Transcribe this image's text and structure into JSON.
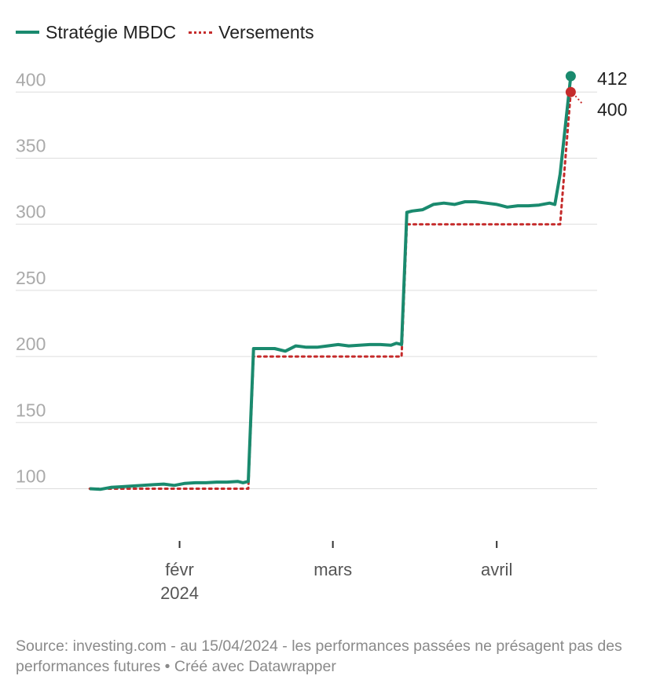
{
  "legend": {
    "series_1": "Stratégie MBDC",
    "series_2": "Versements"
  },
  "footer": {
    "source": "Source: investing.com - au 15/04/2024 - les performances passées ne présagent pas des performances futures • Créé avec Datawrapper"
  },
  "colors": {
    "strategy": "#1a8a6e",
    "deposits": "#c52b2b",
    "grid": "#dddddd",
    "axis_text": "#aaaaaa"
  },
  "chart_data": {
    "type": "line",
    "title": "",
    "xlabel": "",
    "ylabel": "",
    "ylim": [
      70,
      415
    ],
    "xlim": [
      "2024-01-01",
      "2024-04-20"
    ],
    "y_ticks": [
      {
        "value": 100,
        "label": "100"
      },
      {
        "value": 150,
        "label": "150"
      },
      {
        "value": 200,
        "label": "200"
      },
      {
        "value": 250,
        "label": "250"
      },
      {
        "value": 300,
        "label": "300"
      },
      {
        "value": 350,
        "label": "350"
      },
      {
        "value": 400,
        "label": "400"
      }
    ],
    "x_ticks": [
      {
        "date": "2024-02-01",
        "label": "févr",
        "sublabel": "2024"
      },
      {
        "date": "2024-03-01",
        "label": "mars",
        "sublabel": ""
      },
      {
        "date": "2024-04-01",
        "label": "avril",
        "sublabel": ""
      }
    ],
    "grid": true,
    "legend_position": "top-left",
    "series": [
      {
        "name": "Stratégie MBDC",
        "style": "solid",
        "x": [
          "2024-01-15",
          "2024-01-17",
          "2024-01-19",
          "2024-01-21",
          "2024-01-23",
          "2024-01-25",
          "2024-01-27",
          "2024-01-29",
          "2024-01-31",
          "2024-02-02",
          "2024-02-04",
          "2024-02-06",
          "2024-02-08",
          "2024-02-10",
          "2024-02-12",
          "2024-02-13",
          "2024-02-14",
          "2024-02-15",
          "2024-02-17",
          "2024-02-19",
          "2024-02-21",
          "2024-02-23",
          "2024-02-25",
          "2024-02-27",
          "2024-02-29",
          "2024-03-02",
          "2024-03-04",
          "2024-03-06",
          "2024-03-08",
          "2024-03-10",
          "2024-03-12",
          "2024-03-13",
          "2024-03-14",
          "2024-03-15",
          "2024-03-16",
          "2024-03-18",
          "2024-03-20",
          "2024-03-22",
          "2024-03-24",
          "2024-03-26",
          "2024-03-28",
          "2024-03-30",
          "2024-04-01",
          "2024-04-03",
          "2024-04-05",
          "2024-04-07",
          "2024-04-09",
          "2024-04-11",
          "2024-04-12",
          "2024-04-13",
          "2024-04-15"
        ],
        "values": [
          100,
          99.5,
          101,
          101.5,
          102,
          102.5,
          103,
          103.5,
          102.5,
          104,
          104.5,
          104.5,
          105,
          105,
          105.5,
          104.5,
          105.5,
          206,
          206,
          206,
          204,
          208,
          207,
          207,
          208,
          209,
          208,
          208.5,
          209,
          209,
          208.5,
          210,
          209,
          309,
          310,
          311,
          315,
          316,
          315,
          317,
          317,
          316,
          315,
          313,
          314,
          314,
          314.5,
          316,
          315,
          338,
          412
        ]
      },
      {
        "name": "Versements",
        "style": "dotted",
        "x": [
          "2024-01-15",
          "2024-02-14",
          "2024-02-15",
          "2024-03-14",
          "2024-03-15",
          "2024-04-13",
          "2024-04-15"
        ],
        "values": [
          100,
          100,
          200,
          200,
          300,
          300,
          400
        ]
      }
    ],
    "end_labels": [
      {
        "series": "Stratégie MBDC",
        "value": 412,
        "label": "412"
      },
      {
        "series": "Versements",
        "value": 400,
        "label": "400"
      }
    ]
  }
}
